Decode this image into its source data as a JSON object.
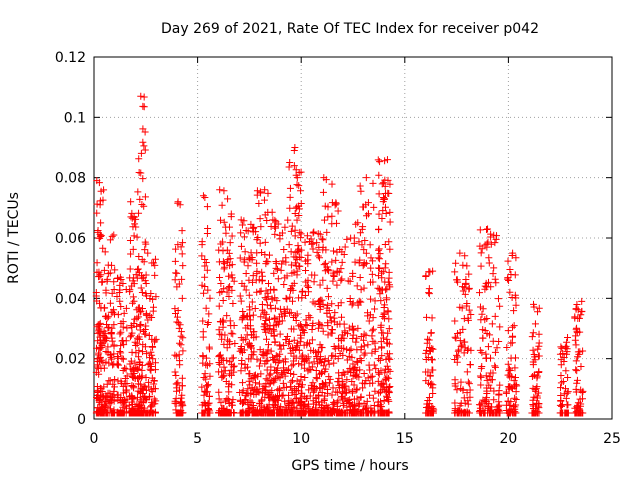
{
  "chart_data": {
    "type": "scatter",
    "title": "Day 269 of 2021, Rate Of TEC Index for receiver p042",
    "xlabel": "GPS time / hours",
    "ylabel": "ROTI / TECUs",
    "xlim": [
      0,
      25
    ],
    "ylim": [
      0,
      0.12
    ],
    "x_ticks": [
      "0",
      "5",
      "10",
      "15",
      "20",
      "25"
    ],
    "y_ticks": [
      "0",
      "0.02",
      "0.04",
      "0.06",
      "0.08",
      "0.1",
      "0.12"
    ],
    "grid": true,
    "marker": "+",
    "color": "#ff0000",
    "point_clusters": [
      {
        "x": [
          0.1,
          0.5
        ],
        "y_max": 0.079,
        "density": 140
      },
      {
        "x": [
          0.5,
          1.0
        ],
        "y_max": 0.061,
        "density": 110
      },
      {
        "x": [
          1.1,
          1.6
        ],
        "y_max": 0.047,
        "density": 100
      },
      {
        "x": [
          1.7,
          2.1
        ],
        "y_max": 0.072,
        "density": 110
      },
      {
        "x": [
          2.1,
          2.5
        ],
        "y_max": 0.107,
        "density": 120
      },
      {
        "x": [
          2.5,
          3.0
        ],
        "y_max": 0.055,
        "density": 80
      },
      {
        "x": [
          3.9,
          4.3
        ],
        "y_max": 0.072,
        "density": 80
      },
      {
        "x": [
          5.2,
          5.6
        ],
        "y_max": 0.074,
        "density": 80
      },
      {
        "x": [
          6.0,
          6.8
        ],
        "y_max": 0.076,
        "density": 160
      },
      {
        "x": [
          7.0,
          7.8
        ],
        "y_max": 0.066,
        "density": 160
      },
      {
        "x": [
          7.8,
          8.6
        ],
        "y_max": 0.076,
        "density": 170
      },
      {
        "x": [
          8.6,
          9.4
        ],
        "y_max": 0.066,
        "density": 170
      },
      {
        "x": [
          9.4,
          10.1
        ],
        "y_max": 0.09,
        "density": 170
      },
      {
        "x": [
          10.1,
          11.0
        ],
        "y_max": 0.062,
        "density": 170
      },
      {
        "x": [
          11.0,
          11.8
        ],
        "y_max": 0.08,
        "density": 160
      },
      {
        "x": [
          11.8,
          12.6
        ],
        "y_max": 0.06,
        "density": 150
      },
      {
        "x": [
          12.6,
          13.6
        ],
        "y_max": 0.08,
        "density": 150
      },
      {
        "x": [
          13.7,
          14.3
        ],
        "y_max": 0.086,
        "density": 170
      },
      {
        "x": [
          16.0,
          16.4
        ],
        "y_max": 0.049,
        "density": 70
      },
      {
        "x": [
          17.4,
          18.2
        ],
        "y_max": 0.055,
        "density": 110
      },
      {
        "x": [
          18.6,
          19.6
        ],
        "y_max": 0.063,
        "density": 150
      },
      {
        "x": [
          19.9,
          20.4
        ],
        "y_max": 0.055,
        "density": 80
      },
      {
        "x": [
          21.1,
          21.5
        ],
        "y_max": 0.038,
        "density": 60
      },
      {
        "x": [
          22.5,
          22.9
        ],
        "y_max": 0.027,
        "density": 60
      },
      {
        "x": [
          23.2,
          23.6
        ],
        "y_max": 0.039,
        "density": 70
      }
    ]
  }
}
